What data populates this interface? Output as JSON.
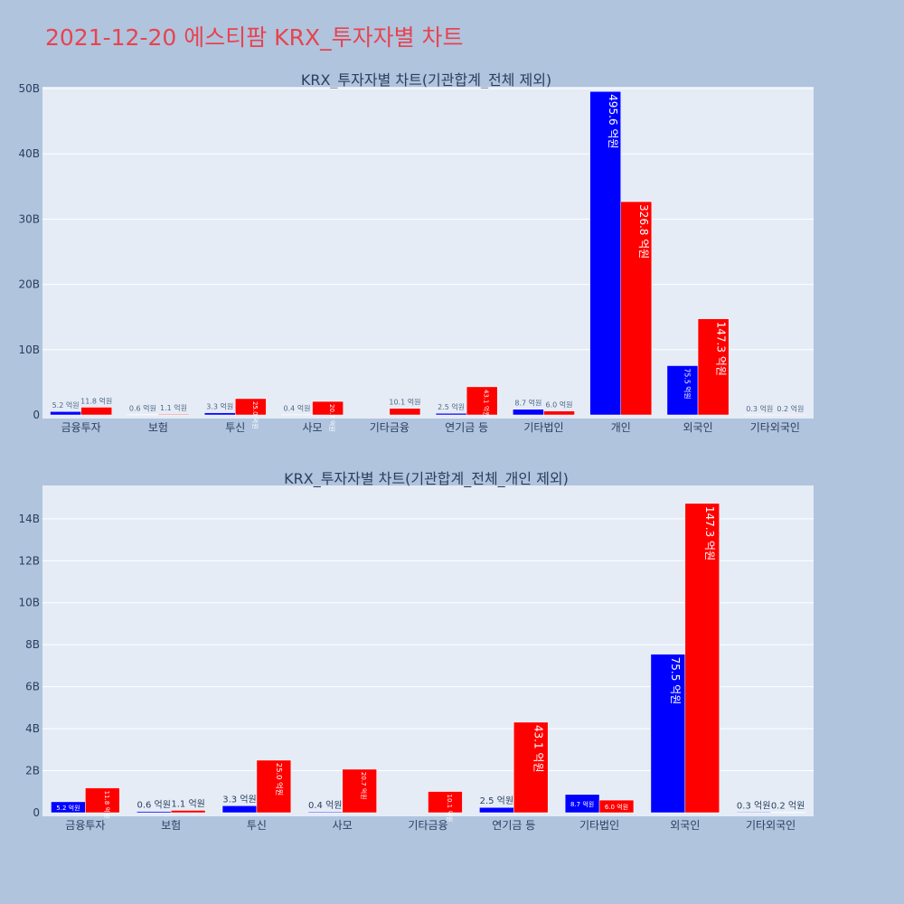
{
  "page_title": "2021-12-20 에스티팜 KRX_투자자별 차트",
  "colors": {
    "background": "#b0c4de",
    "plot_bg": "#e5ecf6",
    "title": "#e8434f",
    "series_buy": "#0000ff",
    "series_sell": "#ff0000"
  },
  "chart_data": [
    {
      "type": "bar",
      "title": "KRX_투자자별 차트(기관합계_전체 제외)",
      "categories": [
        "금융투자",
        "보험",
        "투신",
        "사모",
        "기타금융",
        "연기금 등",
        "기타법인",
        "개인",
        "외국인",
        "기타외국인"
      ],
      "ylim": [
        0,
        50
      ],
      "yticks": [
        "0",
        "10B",
        "20B",
        "30B",
        "40B",
        "50B"
      ],
      "grid": true,
      "legend": "none",
      "series": [
        {
          "color": "#0000ff",
          "values": [
            0.52,
            0.06,
            0.33,
            0.04,
            0,
            0.25,
            0.87,
            49.56,
            7.55,
            0.03
          ],
          "labels": [
            "5.2 억원",
            "0.6 억원",
            "3.3 억원",
            "0.4 억원",
            "",
            "2.5 억원",
            "8.7 억원",
            "495.6 억원",
            "75.5 억원",
            "0.3 억원"
          ]
        },
        {
          "color": "#ff0000",
          "values": [
            1.18,
            0.11,
            2.5,
            2.07,
            1.01,
            4.31,
            0.6,
            32.68,
            14.73,
            0.02
          ],
          "labels": [
            "11.8 억원",
            "1.1 억원",
            "25.0 억원",
            "20.7 억원",
            "10.1 억원",
            "43.1 억원",
            "6.0 억원",
            "326.8 억원",
            "147.3 억원",
            "0.2 억원"
          ]
        }
      ]
    },
    {
      "type": "bar",
      "title": "KRX_투자자별 차트(기관합계_전체_개인 제외)",
      "categories": [
        "금융투자",
        "보험",
        "투신",
        "사모",
        "기타금융",
        "연기금 등",
        "기타법인",
        "외국인",
        "기타외국인"
      ],
      "ylim": [
        0,
        15.5
      ],
      "yticks": [
        "0",
        "2B",
        "4B",
        "6B",
        "8B",
        "10B",
        "12B",
        "14B"
      ],
      "grid": true,
      "legend": "none",
      "series": [
        {
          "color": "#0000ff",
          "values": [
            0.52,
            0.06,
            0.33,
            0.04,
            0,
            0.25,
            0.87,
            7.55,
            0.03
          ],
          "labels": [
            "5.2 억원",
            "0.6 억원",
            "3.3 억원",
            "0.4 억원",
            "",
            "2.5 억원",
            "8.7 억원",
            "75.5 억원",
            "0.3 억원"
          ]
        },
        {
          "color": "#ff0000",
          "values": [
            1.18,
            0.11,
            2.5,
            2.07,
            1.01,
            4.31,
            0.6,
            14.73,
            0.02
          ],
          "labels": [
            "11.8 억원",
            "1.1 억원",
            "25.0 억원",
            "20.7 억원",
            "10.1 억원",
            "43.1 억원",
            "6.0 억원",
            "147.3 억원",
            "0.2 억원"
          ]
        }
      ]
    }
  ]
}
